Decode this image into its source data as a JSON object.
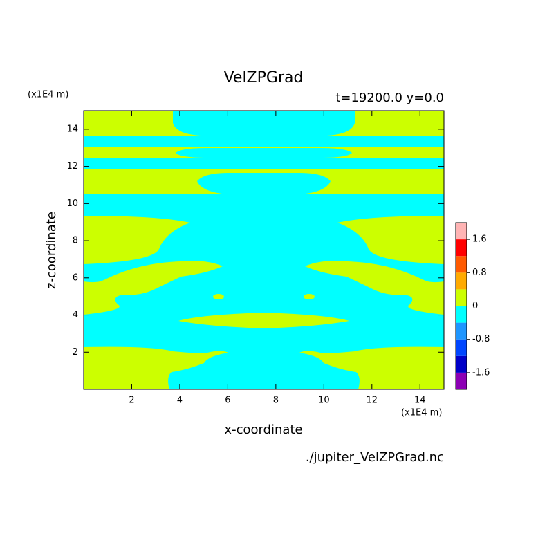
{
  "chart_data": {
    "type": "contour",
    "title": "VelZPGrad",
    "subtitle": "t=19200.0 y=0.0",
    "x_label": "x-coordinate",
    "y_label": "z-coordinate",
    "x_units": "(x1E4 m)",
    "y_units": "(x1E4 m)",
    "source": "./jupiter_VelZPGrad.nc",
    "xlim": [
      0,
      15
    ],
    "ylim": [
      0,
      15
    ],
    "xticks": [
      2,
      4,
      6,
      8,
      10,
      12,
      14
    ],
    "yticks": [
      2,
      4,
      6,
      8,
      10,
      12,
      14
    ],
    "colorbar": {
      "lim": [
        -2,
        2
      ],
      "colors": [
        "#8c00b4",
        "#0000c8",
        "#0046ff",
        "#1e96ff",
        "#00ffff",
        "#ccff00",
        "#ffaa00",
        "#ff5a00",
        "#ff0000",
        "#ffb4b4"
      ],
      "ticks": [
        -1.6,
        -0.8,
        0,
        0.8,
        1.6
      ]
    }
  }
}
